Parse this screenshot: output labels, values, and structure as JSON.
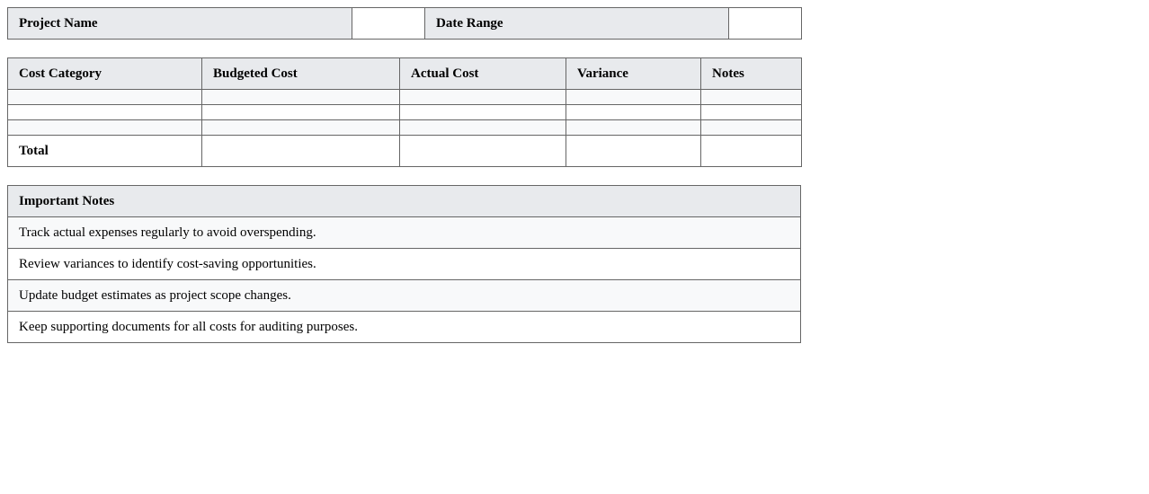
{
  "info": {
    "project_name_label": "Project Name",
    "project_name_value": "",
    "date_range_label": "Date Range",
    "date_range_value": ""
  },
  "cost_table": {
    "headers": [
      "Cost Category",
      "Budgeted Cost",
      "Actual Cost",
      "Variance",
      "Notes"
    ],
    "rows": [
      [
        "",
        "",
        "",
        "",
        ""
      ],
      [
        "",
        "",
        "",
        "",
        ""
      ],
      [
        "",
        "",
        "",
        "",
        ""
      ]
    ],
    "total": {
      "label": "Total",
      "budgeted": "",
      "actual": "",
      "variance": "",
      "notes": ""
    }
  },
  "notes": {
    "title": "Important Notes",
    "items": [
      "Track actual expenses regularly to avoid overspending.",
      "Review variances to identify cost-saving opportunities.",
      "Update budget estimates as project scope changes.",
      "Keep supporting documents for all costs for auditing purposes."
    ]
  },
  "colors": {
    "header_bg": "#e8eaed",
    "alt_row_bg": "#f8f9fa",
    "border": "#666666"
  }
}
